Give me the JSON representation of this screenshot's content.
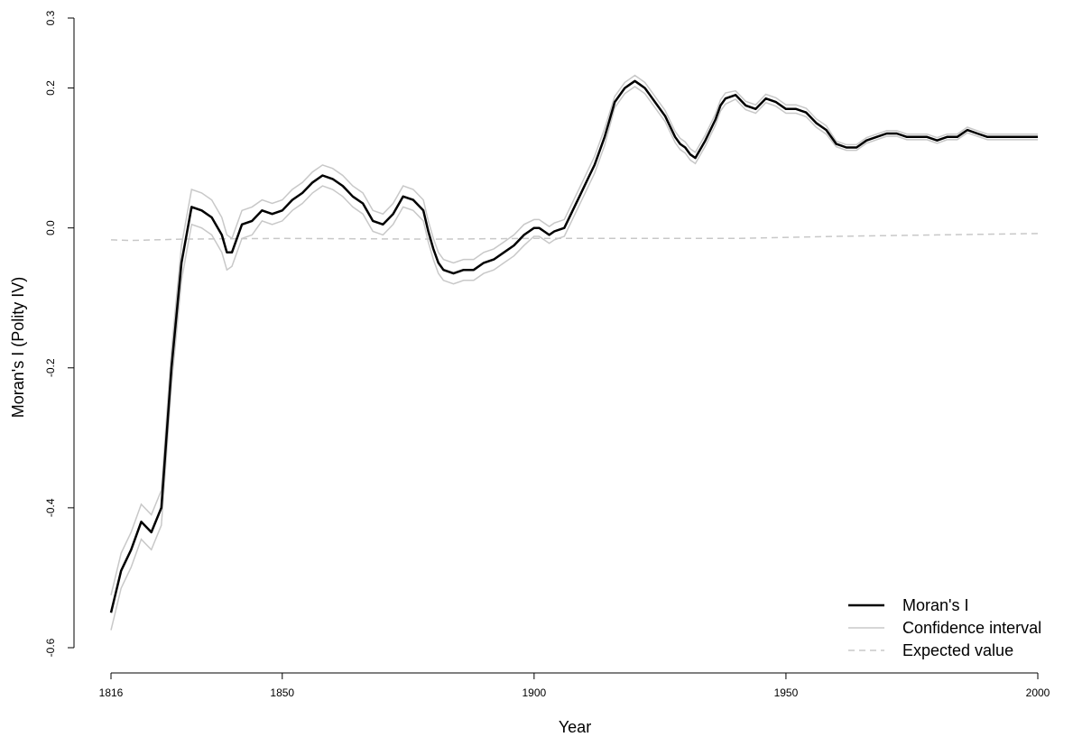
{
  "chart_data": {
    "type": "line",
    "xlabel": "Year",
    "ylabel": "Moran's I (Polity IV)",
    "xlim": [
      1816,
      2000
    ],
    "ylim": [
      -0.6,
      0.3
    ],
    "x_ticks": [
      1816,
      1850,
      1900,
      1950,
      2000
    ],
    "x_tick_labels": [
      "1816",
      "1850",
      "1900",
      "1950",
      "2000"
    ],
    "y_ticks": [
      -0.6,
      -0.4,
      -0.2,
      0.0,
      0.2,
      0.3
    ],
    "y_tick_labels": [
      "-0.6",
      "-0.4",
      "-0.2",
      "0.0",
      "0.2",
      "0.3"
    ],
    "grid": false,
    "legend_position": "bottom-right",
    "series": [
      {
        "name": "Moran's I",
        "color": "#000000",
        "style": "solid",
        "x": [
          1816,
          1818,
          1820,
          1822,
          1824,
          1826,
          1827,
          1828,
          1830,
          1832,
          1834,
          1836,
          1838,
          1839,
          1840,
          1842,
          1844,
          1846,
          1848,
          1850,
          1852,
          1854,
          1856,
          1858,
          1860,
          1862,
          1864,
          1866,
          1868,
          1870,
          1872,
          1874,
          1876,
          1878,
          1879,
          1880,
          1881,
          1882,
          1884,
          1886,
          1888,
          1890,
          1892,
          1894,
          1896,
          1898,
          1900,
          1901,
          1902,
          1903,
          1904,
          1906,
          1908,
          1909,
          1910,
          1911,
          1912,
          1913,
          1914,
          1916,
          1918,
          1919,
          1920,
          1921,
          1922,
          1923,
          1924,
          1926,
          1928,
          1929,
          1930,
          1931,
          1932,
          1934,
          1936,
          1937,
          1938,
          1940,
          1942,
          1944,
          1946,
          1948,
          1950,
          1952,
          1954,
          1956,
          1958,
          1960,
          1962,
          1964,
          1966,
          1968,
          1970,
          1972,
          1974,
          1976,
          1978,
          1980,
          1982,
          1984,
          1986,
          1988,
          1990,
          1992,
          1994,
          1996,
          1998,
          2000
        ],
        "y": [
          -0.55,
          -0.49,
          -0.46,
          -0.42,
          -0.435,
          -0.4,
          -0.3,
          -0.2,
          -0.05,
          0.03,
          0.025,
          0.015,
          -0.01,
          -0.035,
          -0.035,
          0.005,
          0.01,
          0.025,
          0.02,
          0.025,
          0.04,
          0.05,
          0.065,
          0.075,
          0.07,
          0.06,
          0.045,
          0.035,
          0.01,
          0.005,
          0.02,
          0.045,
          0.04,
          0.025,
          -0.005,
          -0.03,
          -0.05,
          -0.06,
          -0.065,
          -0.06,
          -0.06,
          -0.05,
          -0.045,
          -0.035,
          -0.025,
          -0.01,
          0.0,
          0.0,
          -0.005,
          -0.01,
          -0.005,
          0.0,
          0.03,
          0.045,
          0.06,
          0.075,
          0.09,
          0.11,
          0.13,
          0.18,
          0.2,
          0.205,
          0.21,
          0.205,
          0.2,
          0.19,
          0.18,
          0.16,
          0.13,
          0.12,
          0.115,
          0.105,
          0.1,
          0.125,
          0.155,
          0.175,
          0.185,
          0.19,
          0.175,
          0.17,
          0.185,
          0.18,
          0.17,
          0.17,
          0.165,
          0.15,
          0.14,
          0.12,
          0.115,
          0.115,
          0.125,
          0.13,
          0.135,
          0.135,
          0.13,
          0.13,
          0.13,
          0.125,
          0.13,
          0.13,
          0.14,
          0.135,
          0.13,
          0.13,
          0.13,
          0.13,
          0.13,
          0.13
        ]
      },
      {
        "name": "Confidence interval",
        "color": "#c8c8c8",
        "style": "solid",
        "band_offsets": [
          0.025,
          0.025,
          0.025,
          0.025,
          0.025,
          0.025,
          0.025,
          0.025,
          0.025,
          0.025,
          0.025,
          0.025,
          0.025,
          0.025,
          0.02,
          0.02,
          0.02,
          0.015,
          0.015,
          0.015,
          0.015,
          0.015,
          0.015,
          0.015,
          0.015,
          0.015,
          0.015,
          0.015,
          0.015,
          0.015,
          0.015,
          0.015,
          0.015,
          0.015,
          0.015,
          0.015,
          0.015,
          0.015,
          0.015,
          0.015,
          0.015,
          0.015,
          0.015,
          0.015,
          0.015,
          0.015,
          0.012,
          0.012,
          0.012,
          0.012,
          0.012,
          0.012,
          0.012,
          0.012,
          0.012,
          0.012,
          0.012,
          0.012,
          0.012,
          0.008,
          0.008,
          0.008,
          0.008,
          0.008,
          0.008,
          0.008,
          0.008,
          0.008,
          0.008,
          0.008,
          0.008,
          0.008,
          0.008,
          0.008,
          0.008,
          0.008,
          0.008,
          0.006,
          0.006,
          0.006,
          0.006,
          0.006,
          0.006,
          0.006,
          0.006,
          0.006,
          0.006,
          0.004,
          0.004,
          0.004,
          0.004,
          0.004,
          0.004,
          0.004,
          0.004,
          0.004,
          0.004,
          0.004,
          0.004,
          0.004,
          0.004,
          0.004,
          0.004,
          0.004,
          0.004,
          0.004,
          0.004,
          0.004
        ]
      },
      {
        "name": "Expected value",
        "color": "#c8c8c8",
        "style": "dashed",
        "x": [
          1816,
          1820,
          1830,
          1850,
          1880,
          1900,
          1920,
          1940,
          1960,
          1980,
          2000
        ],
        "y": [
          -0.017,
          -0.018,
          -0.016,
          -0.015,
          -0.016,
          -0.015,
          -0.015,
          -0.015,
          -0.012,
          -0.01,
          -0.008
        ]
      }
    ],
    "legend": [
      "Moran's I",
      "Confidence interval",
      "Expected value"
    ]
  }
}
